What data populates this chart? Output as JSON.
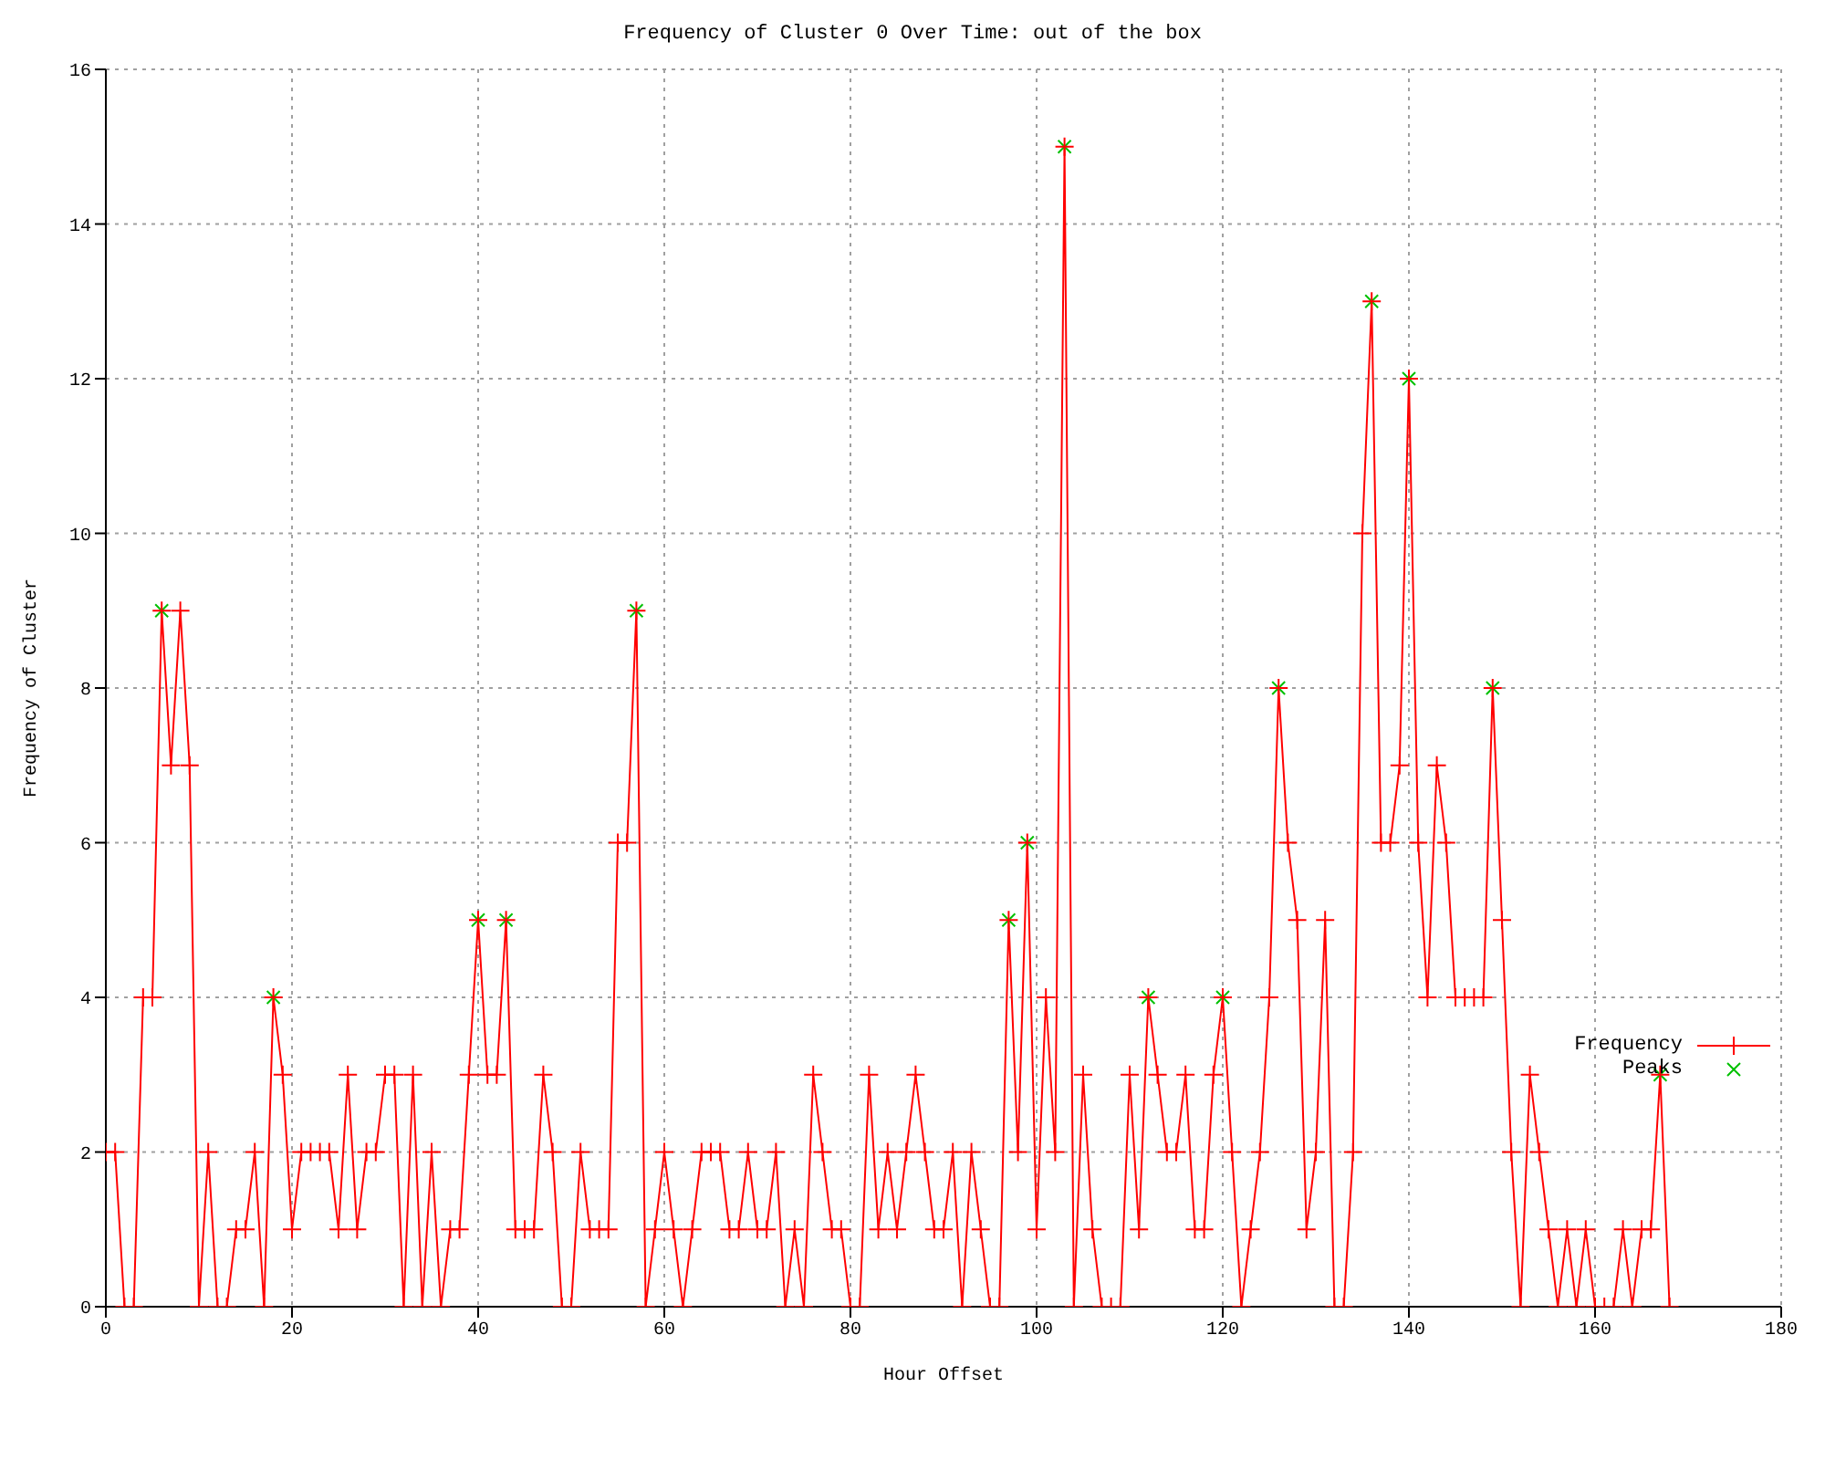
{
  "chart_data": {
    "type": "line",
    "title": "Frequency of Cluster 0 Over Time: out of the box",
    "xlabel": "Hour Offset",
    "ylabel": "Frequency of Cluster",
    "xlim": [
      0,
      180
    ],
    "xticks": [
      0,
      20,
      40,
      60,
      80,
      100,
      120,
      140,
      160,
      180
    ],
    "ylim": [
      0,
      16
    ],
    "yticks": [
      0,
      2,
      4,
      6,
      8,
      10,
      12,
      14,
      16
    ],
    "grid": true,
    "legend": "bottom right",
    "series": [
      {
        "name": "Frequency",
        "color": "#ff0000",
        "marker": "cross",
        "x": [
          0,
          1,
          2,
          3,
          4,
          5,
          6,
          7,
          8,
          9,
          10,
          11,
          12,
          13,
          14,
          15,
          16,
          17,
          18,
          19,
          20,
          21,
          22,
          23,
          24,
          25,
          26,
          27,
          28,
          29,
          30,
          31,
          32,
          33,
          34,
          35,
          36,
          37,
          38,
          39,
          40,
          41,
          42,
          43,
          44,
          45,
          46,
          47,
          48,
          49,
          50,
          51,
          52,
          53,
          54,
          55,
          56,
          57,
          58,
          59,
          60,
          61,
          62,
          63,
          64,
          65,
          66,
          67,
          68,
          69,
          70,
          71,
          72,
          73,
          74,
          75,
          76,
          77,
          78,
          79,
          80,
          81,
          82,
          83,
          84,
          85,
          86,
          87,
          88,
          89,
          90,
          91,
          92,
          93,
          94,
          95,
          96,
          97,
          98,
          99,
          100,
          101,
          102,
          103,
          104,
          105,
          106,
          107,
          108,
          109,
          110,
          111,
          112,
          113,
          114,
          115,
          116,
          117,
          118,
          119,
          120,
          121,
          122,
          123,
          124,
          125,
          126,
          127,
          128,
          129,
          130,
          131,
          132,
          133,
          134,
          135,
          136,
          137,
          138,
          139,
          140,
          141,
          142,
          143,
          144,
          145,
          146,
          147,
          148,
          149,
          150,
          151,
          152,
          153,
          154,
          155,
          156,
          157,
          158,
          159,
          160,
          161,
          162,
          163,
          164,
          165,
          166,
          167,
          168
        ],
        "values": [
          2,
          2,
          0,
          0,
          4,
          4,
          9,
          7,
          9,
          7,
          0,
          2,
          0,
          0,
          1,
          1,
          2,
          0,
          4,
          3,
          1,
          2,
          2,
          2,
          2,
          1,
          3,
          1,
          2,
          2,
          3,
          3,
          0,
          3,
          0,
          2,
          0,
          1,
          1,
          3,
          5,
          3,
          3,
          5,
          1,
          1,
          1,
          3,
          2,
          0,
          0,
          2,
          1,
          1,
          1,
          6,
          6,
          9,
          0,
          1,
          2,
          1,
          0,
          1,
          2,
          2,
          2,
          1,
          1,
          2,
          1,
          1,
          2,
          0,
          1,
          0,
          3,
          2,
          1,
          1,
          0,
          0,
          3,
          1,
          2,
          1,
          2,
          3,
          2,
          1,
          1,
          2,
          0,
          2,
          1,
          0,
          0,
          5,
          2,
          6,
          1,
          4,
          2,
          15,
          0,
          3,
          1,
          0,
          0,
          0,
          3,
          1,
          4,
          3,
          2,
          2,
          3,
          1,
          1,
          3,
          4,
          2,
          0,
          1,
          2,
          4,
          8,
          6,
          5,
          1,
          2,
          5,
          0,
          0,
          2,
          10,
          13,
          6,
          6,
          7,
          12,
          6,
          4,
          7,
          6,
          4,
          4,
          4,
          4,
          8,
          5,
          2,
          0,
          3,
          2,
          1,
          0,
          1,
          0,
          1,
          0,
          0,
          0,
          1,
          0,
          1,
          1,
          3,
          0
        ]
      },
      {
        "name": "Peaks",
        "type": "scatter",
        "color": "#00c000",
        "marker": "cross",
        "x": [
          6,
          18,
          40,
          43,
          57,
          97,
          99,
          103,
          112,
          120,
          126,
          136,
          140,
          149,
          167
        ],
        "values": [
          9,
          4,
          5,
          5,
          9,
          5,
          6,
          15,
          4,
          4,
          8,
          13,
          12,
          8,
          3
        ]
      }
    ]
  }
}
